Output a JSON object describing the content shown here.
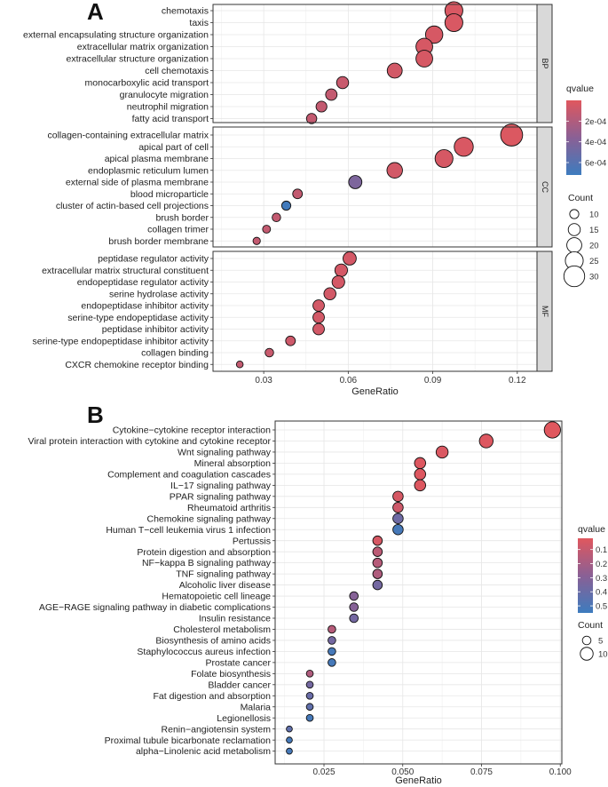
{
  "chart_data": [
    {
      "type": "scatter",
      "panel_label": "A",
      "xlabel": "GeneRatio",
      "xlim": [
        0.012,
        0.127
      ],
      "xticks": [
        "0.03",
        "0.06",
        "0.09",
        "0.12"
      ],
      "xtick_values": [
        0.03,
        0.06,
        0.09,
        0.12
      ],
      "color_legend": {
        "title": "qvalue",
        "ticks": [
          "2e-04",
          "4e-04",
          "6e-04"
        ],
        "tick_values": [
          0.0002,
          0.0004,
          0.0006
        ],
        "range": [
          0.0,
          0.00072
        ]
      },
      "size_legend": {
        "title": "Count",
        "ticks": [
          "10",
          "15",
          "20",
          "25",
          "30"
        ],
        "tick_values": [
          10,
          15,
          20,
          25,
          30
        ]
      },
      "facets": [
        {
          "name": "BP",
          "terms": [
            {
              "label": "chemotaxis",
              "x": 0.0975,
              "count": 25,
              "q": 3e-05
            },
            {
              "label": "taxis",
              "x": 0.0975,
              "count": 25,
              "q": 3e-05
            },
            {
              "label": "external encapsulating structure organization",
              "x": 0.0905,
              "count": 24,
              "q": 4e-05
            },
            {
              "label": "extracellular matrix organization",
              "x": 0.087,
              "count": 23,
              "q": 4e-05
            },
            {
              "label": "extracellular structure organization",
              "x": 0.087,
              "count": 23,
              "q": 4e-05
            },
            {
              "label": "cell chemotaxis",
              "x": 0.0765,
              "count": 20,
              "q": 6e-05
            },
            {
              "label": "monocarboxylic acid transport",
              "x": 0.058,
              "count": 15,
              "q": 0.0001
            },
            {
              "label": "granulocyte migration",
              "x": 0.054,
              "count": 14,
              "q": 0.00012
            },
            {
              "label": "neutrophil migration",
              "x": 0.0505,
              "count": 13,
              "q": 0.00012
            },
            {
              "label": "fatty acid transport",
              "x": 0.047,
              "count": 12,
              "q": 0.00012
            }
          ]
        },
        {
          "name": "CC",
          "terms": [
            {
              "label": "collagen-containing extracellular matrix",
              "x": 0.118,
              "count": 32,
              "q": 2e-05
            },
            {
              "label": "apical part of cell",
              "x": 0.101,
              "count": 27,
              "q": 3e-05
            },
            {
              "label": "apical plasma membrane",
              "x": 0.094,
              "count": 25,
              "q": 4e-05
            },
            {
              "label": "endoplasmic reticulum lumen",
              "x": 0.0765,
              "count": 21,
              "q": 6e-05
            },
            {
              "label": "external side of plasma membrane",
              "x": 0.0625,
              "count": 17,
              "q": 0.00042
            },
            {
              "label": "blood microparticle",
              "x": 0.042,
              "count": 11,
              "q": 0.00012
            },
            {
              "label": "cluster of actin-based cell projections",
              "x": 0.038,
              "count": 10,
              "q": 0.0007
            },
            {
              "label": "brush border",
              "x": 0.0345,
              "count": 9,
              "q": 0.00012
            },
            {
              "label": "collagen trimer",
              "x": 0.031,
              "count": 8,
              "q": 0.00012
            },
            {
              "label": "brush border membrane",
              "x": 0.0275,
              "count": 7,
              "q": 0.00012
            }
          ]
        },
        {
          "name": "MF",
          "terms": [
            {
              "label": "peptidase regulator activity",
              "x": 0.0605,
              "count": 17,
              "q": 5e-05
            },
            {
              "label": "extracellular matrix structural constituent",
              "x": 0.0575,
              "count": 16,
              "q": 5e-05
            },
            {
              "label": "endopeptidase regulator activity",
              "x": 0.0565,
              "count": 16,
              "q": 5e-05
            },
            {
              "label": "serine hydrolase activity",
              "x": 0.0535,
              "count": 15,
              "q": 6e-05
            },
            {
              "label": "endopeptidase inhibitor activity",
              "x": 0.0495,
              "count": 14,
              "q": 6e-05
            },
            {
              "label": "serine-type endopeptidase activity",
              "x": 0.0495,
              "count": 14,
              "q": 6e-05
            },
            {
              "label": "peptidase inhibitor activity",
              "x": 0.0495,
              "count": 14,
              "q": 6e-05
            },
            {
              "label": "serine-type endopeptidase inhibitor activity",
              "x": 0.0395,
              "count": 11,
              "q": 8e-05
            },
            {
              "label": "collagen binding",
              "x": 0.032,
              "count": 9,
              "q": 0.0001
            },
            {
              "label": "CXCR chemokine receptor binding",
              "x": 0.0215,
              "count": 6,
              "q": 0.00012
            }
          ]
        }
      ]
    },
    {
      "type": "scatter",
      "panel_label": "B",
      "xlabel": "GeneRatio",
      "xlim": [
        0.0095,
        0.1005
      ],
      "xticks": [
        "0.025",
        "0.050",
        "0.075",
        "0.100"
      ],
      "xtick_values": [
        0.025,
        0.05,
        0.075,
        0.1
      ],
      "color_legend": {
        "title": "qvalue",
        "ticks": [
          "0.1",
          "0.2",
          "0.3",
          "0.4",
          "0.5"
        ],
        "tick_values": [
          0.1,
          0.2,
          0.3,
          0.4,
          0.5
        ],
        "range": [
          0.02,
          0.55
        ]
      },
      "size_legend": {
        "title": "Count",
        "ticks": [
          "5",
          "10"
        ],
        "tick_values": [
          5,
          10
        ]
      },
      "terms": [
        {
          "label": "Cytokine−cytokine receptor interaction",
          "x": 0.0975,
          "count": 14,
          "q": 0.02
        },
        {
          "label": "Viral protein interaction with cytokine and cytokine receptor",
          "x": 0.0765,
          "count": 11,
          "q": 0.03
        },
        {
          "label": "Wnt signaling pathway",
          "x": 0.0625,
          "count": 9,
          "q": 0.04
        },
        {
          "label": "Mineral absorption",
          "x": 0.0555,
          "count": 8,
          "q": 0.03
        },
        {
          "label": "Complement and coagulation cascades",
          "x": 0.0555,
          "count": 8,
          "q": 0.03
        },
        {
          "label": "IL−17 signaling pathway",
          "x": 0.0555,
          "count": 8,
          "q": 0.03
        },
        {
          "label": "PPAR signaling pathway",
          "x": 0.0485,
          "count": 7,
          "q": 0.05
        },
        {
          "label": "Rheumatoid arthritis",
          "x": 0.0485,
          "count": 7,
          "q": 0.08
        },
        {
          "label": "Chemokine signaling pathway",
          "x": 0.0485,
          "count": 7,
          "q": 0.38
        },
        {
          "label": "Human T−cell leukemia virus 1 infection",
          "x": 0.0485,
          "count": 7,
          "q": 0.52
        },
        {
          "label": "Pertussis",
          "x": 0.042,
          "count": 6,
          "q": 0.05
        },
        {
          "label": "Protein digestion and absorption",
          "x": 0.042,
          "count": 6,
          "q": 0.13
        },
        {
          "label": "NF−kappa B signaling pathway",
          "x": 0.042,
          "count": 6,
          "q": 0.15
        },
        {
          "label": "TNF signaling pathway",
          "x": 0.042,
          "count": 6,
          "q": 0.17
        },
        {
          "label": "Alcoholic liver disease",
          "x": 0.042,
          "count": 6,
          "q": 0.36
        },
        {
          "label": "Hematopoietic cell lineage",
          "x": 0.0345,
          "count": 5,
          "q": 0.3
        },
        {
          "label": "AGE−RAGE signaling pathway in diabetic complications",
          "x": 0.0345,
          "count": 5,
          "q": 0.3
        },
        {
          "label": "Insulin resistance",
          "x": 0.0345,
          "count": 5,
          "q": 0.36
        },
        {
          "label": "Cholesterol metabolism",
          "x": 0.0275,
          "count": 4,
          "q": 0.15
        },
        {
          "label": "Biosynthesis of amino acids",
          "x": 0.0275,
          "count": 4,
          "q": 0.36
        },
        {
          "label": "Staphylococcus aureus infection",
          "x": 0.0275,
          "count": 4,
          "q": 0.52
        },
        {
          "label": "Prostate cancer",
          "x": 0.0275,
          "count": 4,
          "q": 0.52
        },
        {
          "label": "Folate biosynthesis",
          "x": 0.0205,
          "count": 3,
          "q": 0.17
        },
        {
          "label": "Bladder cancer",
          "x": 0.0205,
          "count": 3,
          "q": 0.36
        },
        {
          "label": "Fat digestion and absorption",
          "x": 0.0205,
          "count": 3,
          "q": 0.4
        },
        {
          "label": "Malaria",
          "x": 0.0205,
          "count": 3,
          "q": 0.43
        },
        {
          "label": "Legionellosis",
          "x": 0.0205,
          "count": 3,
          "q": 0.52
        },
        {
          "label": "Renin−angiotensin system",
          "x": 0.014,
          "count": 2,
          "q": 0.43
        },
        {
          "label": "Proximal tubule bicarbonate reclamation",
          "x": 0.014,
          "count": 2,
          "q": 0.52
        },
        {
          "label": "alpha−Linolenic acid metabolism",
          "x": 0.014,
          "count": 2,
          "q": 0.52
        }
      ]
    }
  ],
  "colors": {
    "high": "#e0575e",
    "mid": "#8a6095",
    "low": "#3d7cbe",
    "panel_bg": "#ffffff",
    "grid": "#e6e6e6",
    "strip_bg": "#d9d9d9"
  }
}
